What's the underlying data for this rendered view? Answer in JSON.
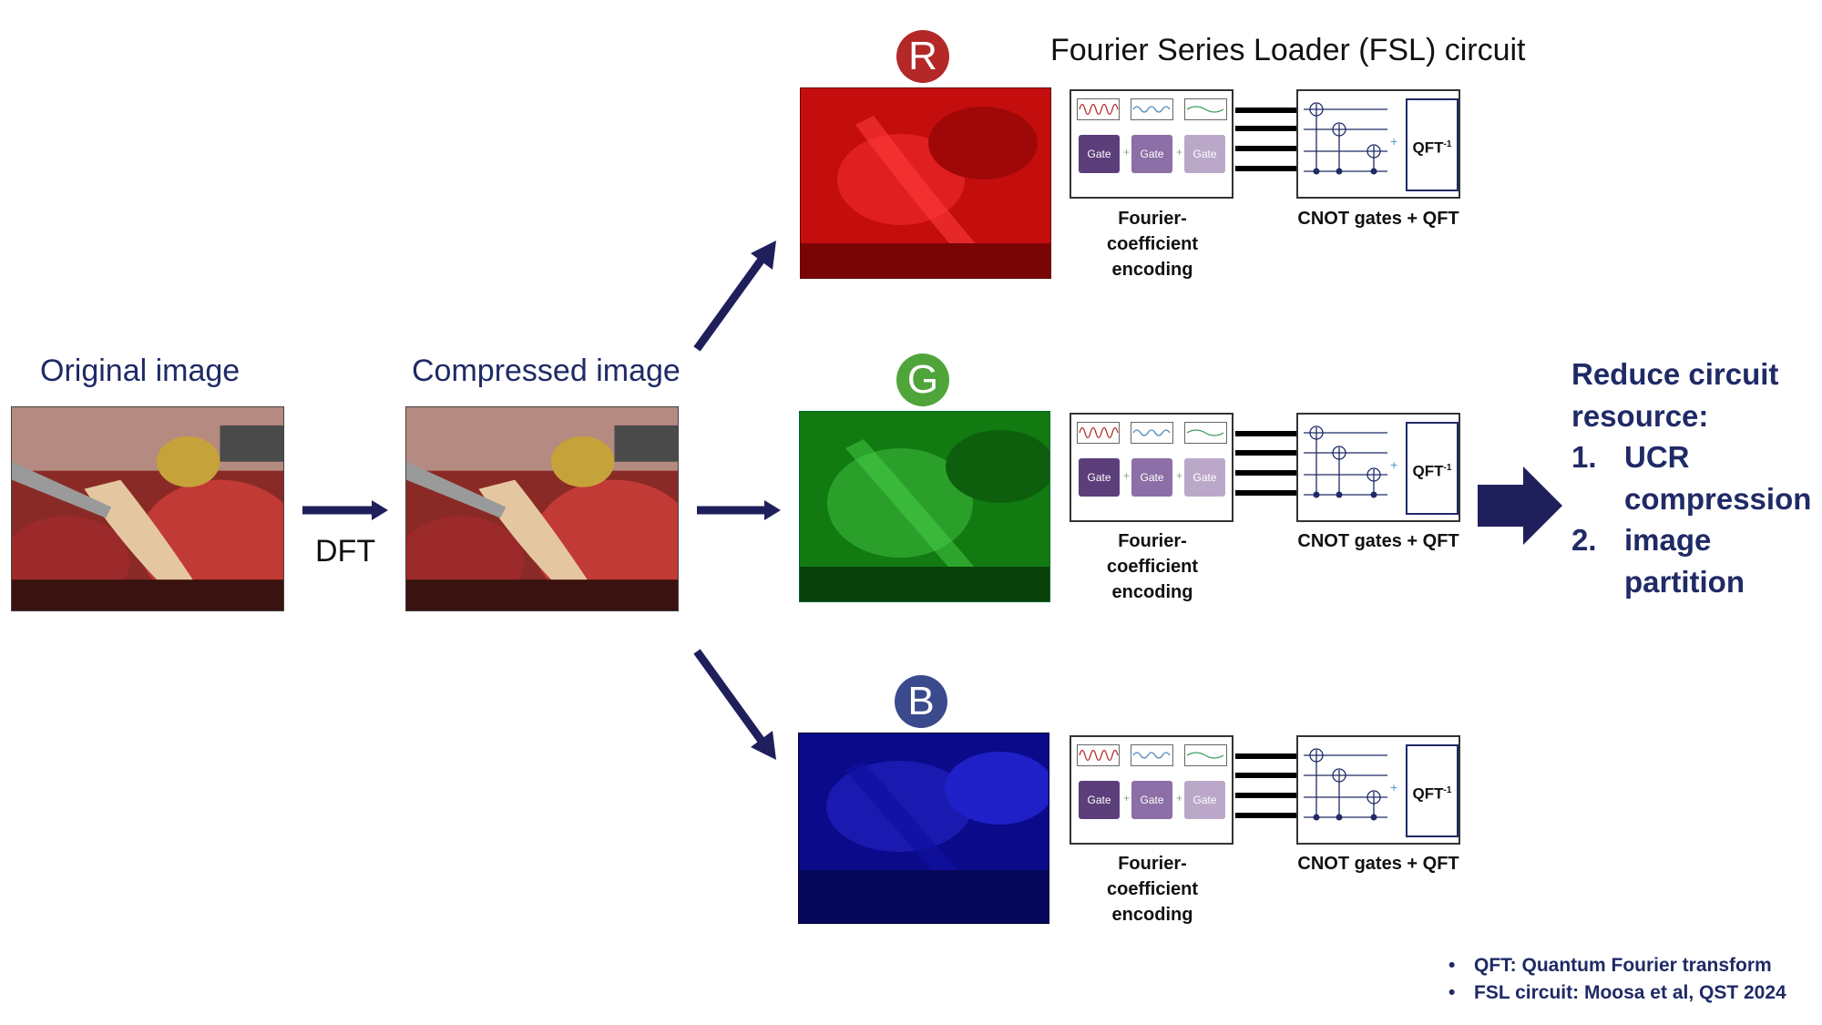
{
  "labels": {
    "original": "Original image",
    "compressed": "Compressed image",
    "dft": "DFT",
    "fsl_title": "Fourier Series Loader (FSL) circuit"
  },
  "channels": [
    {
      "letter": "R",
      "color": "#b42828"
    },
    {
      "letter": "G",
      "color": "#4fa53a"
    },
    {
      "letter": "B",
      "color": "#3b4a8c"
    }
  ],
  "circuit": {
    "gate_label": "Gate",
    "qft_label": "QFT",
    "qft_superscript": "-1",
    "encoding_lines": [
      "Fourier-",
      "coefficient",
      "encoding"
    ],
    "cnot_caption": "CNOT gates + QFT"
  },
  "reduce": {
    "heading_line1": "Reduce circuit",
    "heading_line2": "resource:",
    "items": [
      {
        "num": "1.",
        "line1": "UCR",
        "line2": "compression"
      },
      {
        "num": "2.",
        "line1": "image",
        "line2": "partition"
      }
    ]
  },
  "notes": [
    "QFT: Quantum Fourier transform",
    "FSL circuit: Moosa et al, QST 2024"
  ],
  "colors": {
    "navy": "#1f1f5c",
    "gate_dark": "#5b3e7a",
    "gate_mid": "#8c6fa6",
    "gate_light": "#bba8c9"
  }
}
